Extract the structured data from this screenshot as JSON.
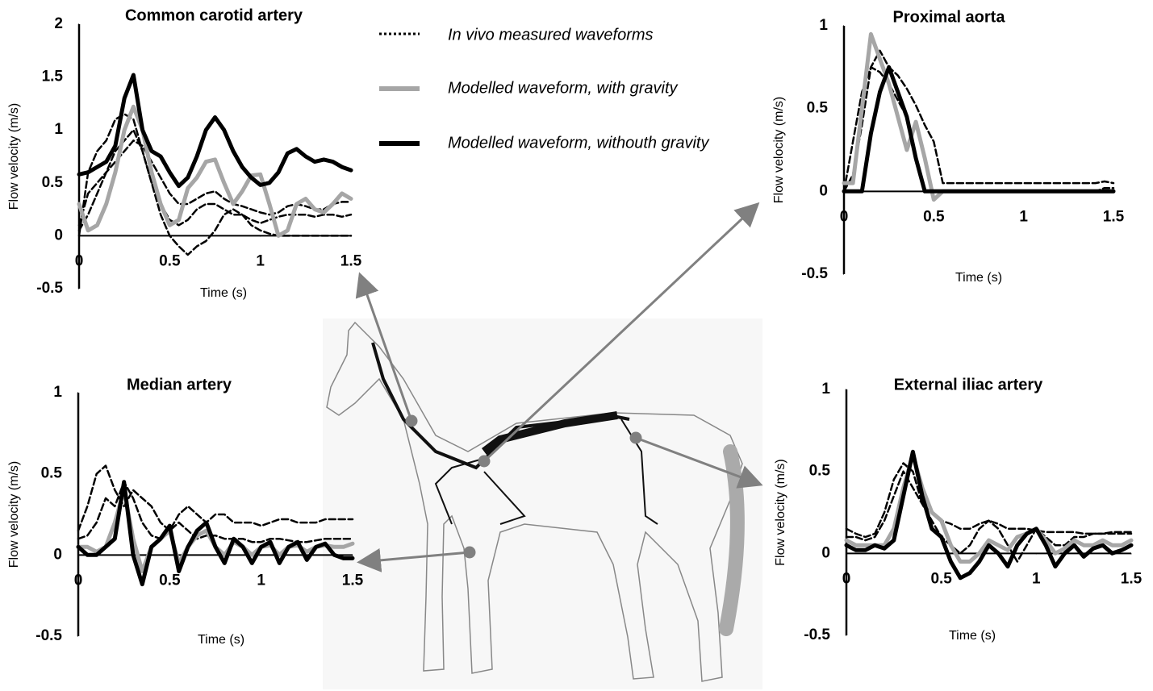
{
  "chart_data": [
    {
      "type": "line",
      "title": "Common carotid artery",
      "x_label": "Time (s)",
      "y_label": "Flow velocity (m/s)",
      "x": [
        0,
        0.05,
        0.1,
        0.15,
        0.2,
        0.25,
        0.3,
        0.35,
        0.4,
        0.45,
        0.5,
        0.55,
        0.6,
        0.65,
        0.7,
        0.75,
        0.8,
        0.85,
        0.9,
        0.95,
        1,
        1.05,
        1.1,
        1.15,
        1.2,
        1.25,
        1.3,
        1.35,
        1.4,
        1.45,
        1.5
      ],
      "xlim": [
        0,
        1.5
      ],
      "xticks": [
        0,
        0.5,
        1,
        1.5
      ],
      "ylim": [
        -0.5,
        2
      ],
      "yticks": [
        -0.5,
        0,
        0.5,
        1,
        1.5,
        2
      ],
      "series": [
        {
          "name": "In vivo measured waveforms",
          "color": "#000000",
          "style": "dashed",
          "values": [
            0.0,
            0.6,
            0.8,
            0.9,
            1.1,
            1.15,
            1.1,
            0.8,
            0.5,
            0.3,
            0.15,
            0.1,
            0.15,
            0.25,
            0.3,
            0.3,
            0.25,
            0.2,
            0.2,
            0.15,
            0.12,
            0.15,
            0.18,
            0.2,
            0.2,
            0.2,
            0.18,
            0.2,
            0.2,
            0.18,
            0.2
          ]
        },
        {
          "name": "In vivo measured waveforms",
          "color": "#000000",
          "style": "dashed",
          "values": [
            0.05,
            0.2,
            0.4,
            0.6,
            0.8,
            0.9,
            1.0,
            0.8,
            0.5,
            0.2,
            0.0,
            -0.1,
            -0.18,
            -0.1,
            -0.05,
            0.05,
            0.2,
            0.25,
            0.2,
            0.1,
            0.05,
            0.02,
            0.0,
            0.0,
            0.0,
            0.0,
            0.0,
            0.0,
            0.0,
            0.0,
            0.0
          ]
        },
        {
          "name": "In vivo measured waveforms",
          "color": "#000000",
          "style": "dashed",
          "values": [
            0.1,
            0.4,
            0.5,
            0.6,
            0.7,
            0.8,
            0.9,
            0.85,
            0.7,
            0.55,
            0.4,
            0.3,
            0.3,
            0.35,
            0.4,
            0.42,
            0.35,
            0.3,
            0.28,
            0.25,
            0.22,
            0.2,
            0.22,
            0.28,
            0.3,
            0.28,
            0.25,
            0.25,
            0.3,
            0.32,
            0.32
          ]
        },
        {
          "name": "Modelled waveform, with gravity",
          "color": "#a6a6a6",
          "style": "solid",
          "values": [
            0.3,
            0.05,
            0.1,
            0.3,
            0.6,
            1.0,
            1.22,
            1.0,
            0.6,
            0.3,
            0.1,
            0.15,
            0.45,
            0.55,
            0.7,
            0.72,
            0.5,
            0.3,
            0.42,
            0.57,
            0.58,
            0.3,
            0.0,
            0.05,
            0.3,
            0.35,
            0.25,
            0.22,
            0.3,
            0.4,
            0.35
          ]
        },
        {
          "name": "Modelled waveform, withouth gravity",
          "color": "#000000",
          "style": "solid",
          "values": [
            0.58,
            0.6,
            0.65,
            0.7,
            0.85,
            1.3,
            1.52,
            1.0,
            0.8,
            0.75,
            0.6,
            0.47,
            0.55,
            0.75,
            1.0,
            1.12,
            1.0,
            0.8,
            0.65,
            0.55,
            0.48,
            0.5,
            0.6,
            0.78,
            0.82,
            0.75,
            0.7,
            0.72,
            0.7,
            0.65,
            0.62
          ]
        }
      ]
    },
    {
      "type": "line",
      "title": "Proximal aorta",
      "x_label": "Time (s)",
      "y_label": "Flow velocity (m/s)",
      "x": [
        0,
        0.05,
        0.1,
        0.15,
        0.2,
        0.25,
        0.3,
        0.35,
        0.4,
        0.45,
        0.5,
        0.55,
        0.6,
        0.65,
        0.7,
        0.75,
        0.8,
        0.85,
        0.9,
        0.95,
        1,
        1.05,
        1.1,
        1.15,
        1.2,
        1.25,
        1.3,
        1.35,
        1.4,
        1.45,
        1.5
      ],
      "xlim": [
        0,
        1.5
      ],
      "xticks": [
        0,
        0.5,
        1,
        1.5
      ],
      "ylim": [
        -0.5,
        1
      ],
      "yticks": [
        -0.5,
        0,
        0.5,
        1
      ],
      "series": [
        {
          "name": "In vivo measured waveforms",
          "color": "#000000",
          "style": "dashed",
          "values": [
            0,
            0.1,
            0.4,
            0.75,
            0.85,
            0.75,
            0.7,
            0.62,
            0.52,
            0.4,
            0.3,
            0.05,
            0.05,
            0.05,
            0.05,
            0.05,
            0.05,
            0.05,
            0.05,
            0.05,
            0.05,
            0.05,
            0.05,
            0.05,
            0.05,
            0.05,
            0.05,
            0.05,
            0.05,
            0.06,
            0.05
          ]
        },
        {
          "name": "In vivo measured waveforms",
          "color": "#000000",
          "style": "dashed",
          "values": [
            0,
            0.3,
            0.6,
            0.75,
            0.72,
            0.65,
            0.55,
            0.45,
            0.2,
            0,
            0,
            0,
            0,
            0,
            0,
            0,
            0,
            0,
            0,
            0,
            0,
            0,
            0,
            0,
            0,
            0,
            0,
            0,
            0,
            0.02,
            0.02
          ]
        },
        {
          "name": "Modelled waveform, with gravity",
          "color": "#a6a6a6",
          "style": "solid",
          "values": [
            0.05,
            0.05,
            0.5,
            0.95,
            0.8,
            0.65,
            0.45,
            0.25,
            0.42,
            0.2,
            -0.05,
            0,
            0,
            0,
            0,
            0,
            0,
            0,
            0,
            0,
            0,
            0,
            0,
            0,
            0,
            0,
            0,
            0,
            0,
            0,
            0
          ]
        },
        {
          "name": "Modelled waveform, withouth gravity",
          "color": "#000000",
          "style": "solid",
          "values": [
            0,
            0,
            0,
            0.35,
            0.6,
            0.75,
            0.6,
            0.45,
            0.2,
            0,
            0,
            0,
            0,
            0,
            0,
            0,
            0,
            0,
            0,
            0,
            0,
            0,
            0,
            0,
            0,
            0,
            0,
            0,
            0,
            0,
            0
          ]
        }
      ]
    },
    {
      "type": "line",
      "title": "Median artery",
      "x_label": "Time (s)",
      "y_label": "Flow velocity (m/s)",
      "x": [
        0,
        0.05,
        0.1,
        0.15,
        0.2,
        0.25,
        0.3,
        0.35,
        0.4,
        0.45,
        0.5,
        0.55,
        0.6,
        0.65,
        0.7,
        0.75,
        0.8,
        0.85,
        0.9,
        0.95,
        1,
        1.05,
        1.1,
        1.15,
        1.2,
        1.25,
        1.3,
        1.35,
        1.4,
        1.45,
        1.5
      ],
      "xlim": [
        0,
        1.5
      ],
      "xticks": [
        0,
        0.5,
        1,
        1.5
      ],
      "ylim": [
        -0.5,
        1
      ],
      "yticks": [
        -0.5,
        0,
        0.5,
        1
      ],
      "series": [
        {
          "name": "In vivo measured waveforms",
          "color": "#000000",
          "style": "dashed",
          "values": [
            0.15,
            0.3,
            0.5,
            0.55,
            0.4,
            0.3,
            0.4,
            0.35,
            0.3,
            0.2,
            0.15,
            0.25,
            0.3,
            0.25,
            0.2,
            0.25,
            0.25,
            0.2,
            0.2,
            0.2,
            0.18,
            0.2,
            0.22,
            0.22,
            0.2,
            0.2,
            0.2,
            0.22,
            0.22,
            0.22,
            0.22
          ]
        },
        {
          "name": "In vivo measured waveforms",
          "color": "#000000",
          "style": "dashed",
          "values": [
            0.1,
            0.12,
            0.2,
            0.35,
            0.3,
            0.45,
            0.35,
            0.2,
            0.12,
            0.1,
            0.15,
            0.2,
            0.15,
            0.1,
            0.12,
            0.12,
            0.1,
            0.1,
            0.1,
            0.08,
            0.08,
            0.1,
            0.1,
            0.09,
            0.08,
            0.08,
            0.09,
            0.1,
            0.1,
            0.1,
            0.1
          ]
        },
        {
          "name": "Modelled waveform, with gravity",
          "color": "#a6a6a6",
          "style": "solid",
          "values": [
            0.05,
            0.05,
            0.02,
            0.05,
            0.2,
            0.4,
            0.1,
            -0.1,
            0.05,
            0.1,
            0.15,
            -0.05,
            0.05,
            0.12,
            0.15,
            0.05,
            0.0,
            0.08,
            0.05,
            0.0,
            0.05,
            0.06,
            0.0,
            0.05,
            0.06,
            0.02,
            0.05,
            0.06,
            0.05,
            0.05,
            0.07
          ]
        },
        {
          "name": "Modelled waveform, withouth gravity",
          "color": "#000000",
          "style": "solid",
          "values": [
            0.05,
            0.0,
            0.0,
            0.05,
            0.1,
            0.45,
            0.0,
            -0.18,
            0.05,
            0.1,
            0.18,
            -0.1,
            0.05,
            0.15,
            0.2,
            0.05,
            -0.05,
            0.1,
            0.05,
            -0.05,
            0.05,
            0.08,
            -0.05,
            0.05,
            0.08,
            -0.03,
            0.05,
            0.07,
            0.0,
            -0.02,
            -0.02
          ]
        }
      ]
    },
    {
      "type": "line",
      "title": "External iliac artery",
      "x_label": "Time (s)",
      "y_label": "Flow velocity (m/s)",
      "x": [
        0,
        0.05,
        0.1,
        0.15,
        0.2,
        0.25,
        0.3,
        0.35,
        0.4,
        0.45,
        0.5,
        0.55,
        0.6,
        0.65,
        0.7,
        0.75,
        0.8,
        0.85,
        0.9,
        0.95,
        1,
        1.05,
        1.1,
        1.15,
        1.2,
        1.25,
        1.3,
        1.35,
        1.4,
        1.45,
        1.5
      ],
      "xlim": [
        0,
        1.5
      ],
      "xticks": [
        0,
        0.5,
        1,
        1.5
      ],
      "ylim": [
        -0.5,
        1
      ],
      "yticks": [
        -0.5,
        0,
        0.5,
        1
      ],
      "series": [
        {
          "name": "In vivo measured waveforms",
          "color": "#000000",
          "style": "dashed",
          "values": [
            0.15,
            0.12,
            0.1,
            0.12,
            0.25,
            0.45,
            0.55,
            0.5,
            0.3,
            0.25,
            0.2,
            0.18,
            0.15,
            0.15,
            0.18,
            0.2,
            0.18,
            0.15,
            0.15,
            0.15,
            0.14,
            0.13,
            0.13,
            0.13,
            0.13,
            0.12,
            0.12,
            0.12,
            0.13,
            0.13,
            0.13
          ]
        },
        {
          "name": "In vivo measured waveforms",
          "color": "#000000",
          "style": "dashed",
          "values": [
            0.1,
            0.1,
            0.08,
            0.1,
            0.2,
            0.35,
            0.5,
            0.4,
            0.3,
            0.2,
            0.1,
            0.05,
            0.0,
            0.05,
            0.15,
            0.2,
            0.15,
            0.05,
            -0.05,
            0.05,
            0.15,
            0.1,
            0.05,
            0.05,
            0.1,
            0.1,
            0.12,
            0.12,
            0.12,
            0.12,
            0.12
          ]
        },
        {
          "name": "Modelled waveform, with gravity",
          "color": "#a6a6a6",
          "style": "solid",
          "values": [
            0.08,
            0.05,
            0.05,
            0.05,
            0.05,
            0.15,
            0.4,
            0.6,
            0.4,
            0.25,
            0.2,
            0.05,
            -0.05,
            -0.05,
            0.0,
            0.08,
            0.05,
            0.02,
            0.1,
            0.12,
            0.15,
            0.08,
            0.0,
            0.03,
            0.08,
            0.05,
            0.05,
            0.08,
            0.05,
            0.05,
            0.08
          ]
        },
        {
          "name": "Modelled waveform, withouth gravity",
          "color": "#000000",
          "style": "solid",
          "values": [
            0.05,
            0.02,
            0.02,
            0.05,
            0.03,
            0.08,
            0.35,
            0.62,
            0.35,
            0.15,
            0.1,
            -0.05,
            -0.15,
            -0.12,
            -0.05,
            0.05,
            0.0,
            -0.08,
            0.05,
            0.12,
            0.15,
            0.05,
            -0.08,
            0.0,
            0.05,
            -0.02,
            0.03,
            0.05,
            0.0,
            0.02,
            0.05
          ]
        }
      ]
    }
  ]
}
